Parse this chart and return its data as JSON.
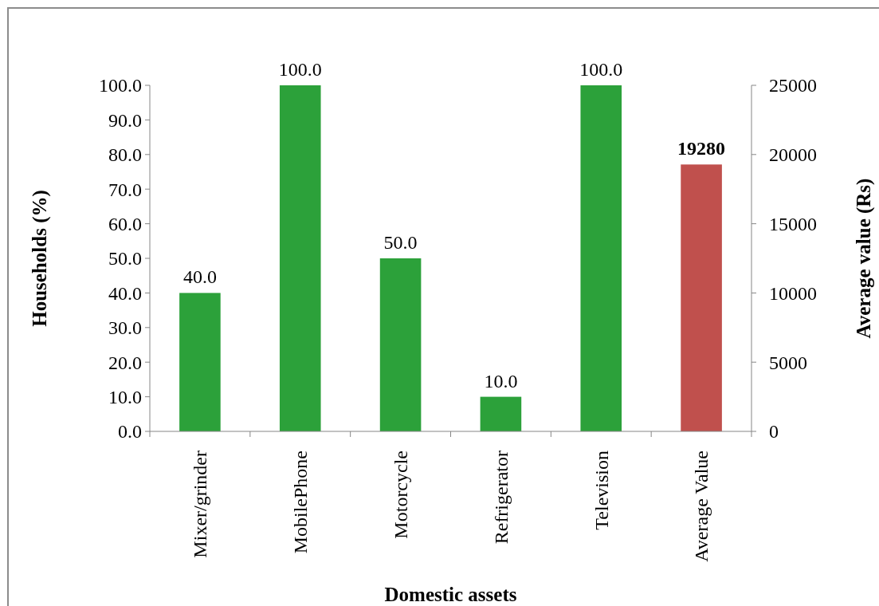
{
  "chart_data": {
    "type": "bar",
    "xlabel": "Domestic assets",
    "ylabel": "Households (%)",
    "y2label": "Average value (Rs)",
    "categories": [
      "Mixer/grinder",
      "MobilePhone",
      "Motorcycle",
      "Refrigerator",
      "Television",
      "Average Value"
    ],
    "series": [
      {
        "color": "#2ca13a",
        "values": [
          40,
          100,
          50,
          10,
          100,
          null
        ],
        "value_labels": [
          "40.0",
          "100.0",
          "50.0",
          "10.0",
          "100.0",
          null
        ]
      },
      {
        "color": "#c0504d",
        "axis": "y2",
        "values": [
          null,
          null,
          null,
          null,
          null,
          19280
        ],
        "value_labels": [
          null,
          null,
          null,
          null,
          null,
          "19280"
        ]
      }
    ],
    "ylim": [
      0,
      100
    ],
    "yticks": [
      {
        "value": 0,
        "label": "0.0"
      },
      {
        "value": 10,
        "label": "10.0"
      },
      {
        "value": 20,
        "label": "20.0"
      },
      {
        "value": 30,
        "label": "30.0"
      },
      {
        "value": 40,
        "label": "40.0"
      },
      {
        "value": 50,
        "label": "50.0"
      },
      {
        "value": 60,
        "label": "60.0"
      },
      {
        "value": 70,
        "label": "70.0"
      },
      {
        "value": 80,
        "label": "80.0"
      },
      {
        "value": 90,
        "label": "90.0"
      },
      {
        "value": 100,
        "label": "100.0"
      }
    ],
    "y2lim": [
      0,
      25000
    ],
    "y2ticks": [
      0,
      5000,
      10000,
      15000,
      20000,
      25000
    ],
    "grid": false
  }
}
